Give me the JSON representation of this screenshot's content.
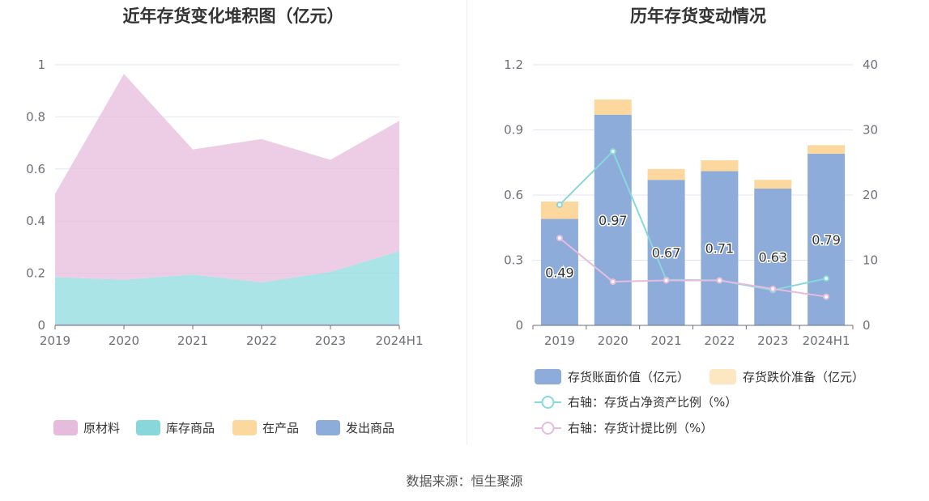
{
  "source": "数据来源：恒生聚源",
  "chart_data": [
    {
      "type": "area",
      "stacked": true,
      "title": "近年存货变化堆积图（亿元）",
      "categories": [
        "2019",
        "2020",
        "2021",
        "2022",
        "2023",
        "2024H1"
      ],
      "ylim": [
        0,
        1
      ],
      "yticks": [
        "0",
        "0.2",
        "0.4",
        "0.6",
        "0.8",
        "1"
      ],
      "grid": true,
      "legend_position": "bottom",
      "series": [
        {
          "name": "原材料",
          "color": "#e6bcdc",
          "values": [
            0.32,
            0.79,
            0.48,
            0.55,
            0.43,
            0.5
          ]
        },
        {
          "name": "库存商品",
          "color": "#88d8db",
          "values": [
            0.18,
            0.17,
            0.19,
            0.16,
            0.2,
            0.28
          ]
        },
        {
          "name": "在产品",
          "color": "#fdd89e",
          "values": [
            0,
            0,
            0,
            0,
            0,
            0
          ]
        },
        {
          "name": "发出商品",
          "color": "#8eacd9",
          "values": [
            0.005,
            0.005,
            0.005,
            0.005,
            0.005,
            0.005
          ]
        }
      ]
    },
    {
      "type": "bar",
      "stacked": true,
      "title": "历年存货变动情况",
      "categories": [
        "2019",
        "2020",
        "2021",
        "2022",
        "2023",
        "2024H1"
      ],
      "ylim": [
        0,
        1.2
      ],
      "yticks": [
        "0",
        "0.3",
        "0.6",
        "0.9",
        "1.2"
      ],
      "y2lim": [
        0,
        40
      ],
      "y2ticks": [
        "0",
        "10",
        "20",
        "30",
        "40"
      ],
      "grid": true,
      "legend_position": "bottom",
      "series": [
        {
          "name": "存货账面价值（亿元）",
          "type": "bar",
          "color": "#8eacd9",
          "values": [
            0.49,
            0.97,
            0.67,
            0.71,
            0.63,
            0.79
          ],
          "labels": [
            "0.49",
            "0.97",
            "0.67",
            "0.71",
            "0.63",
            "0.79"
          ]
        },
        {
          "name": "存货跌价准备（亿元）",
          "type": "bar",
          "color": "#fdd89e",
          "values": [
            0.08,
            0.07,
            0.05,
            0.05,
            0.04,
            0.04
          ]
        },
        {
          "name": "右轴：存货占净资产比例（%）",
          "type": "line",
          "axis": "right",
          "color": "#88d8db",
          "values": [
            18.5,
            26.7,
            7.0,
            6.9,
            5.4,
            7.2
          ]
        },
        {
          "name": "右轴：存货计提比例（%）",
          "type": "line",
          "axis": "right",
          "color": "#e6bcdc",
          "values": [
            13.4,
            6.7,
            6.9,
            6.9,
            5.6,
            4.4
          ]
        }
      ]
    }
  ]
}
